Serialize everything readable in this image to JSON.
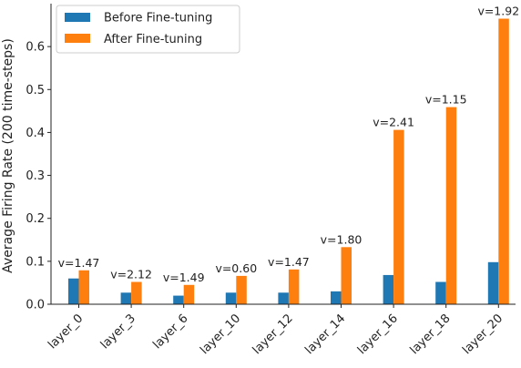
{
  "chart_data": {
    "type": "bar",
    "title": "",
    "xlabel": "",
    "ylabel": "Average Firing Rate (200 time-steps)",
    "ylim": [
      0,
      0.7
    ],
    "yticks": [
      0.0,
      0.1,
      0.2,
      0.3,
      0.4,
      0.5,
      0.6
    ],
    "ytick_labels": [
      "0.0",
      "0.1",
      "0.2",
      "0.3",
      "0.4",
      "0.5",
      "0.6"
    ],
    "grid": false,
    "legend_position": "top-left",
    "categories": [
      "layer_0",
      "layer_3",
      "layer_6",
      "layer_10",
      "layer_12",
      "layer_14",
      "layer_16",
      "layer_18",
      "layer_20"
    ],
    "series": [
      {
        "name": "Before Fine-tuning",
        "color": "#1f77b4",
        "values": [
          0.06,
          0.027,
          0.02,
          0.027,
          0.027,
          0.03,
          0.068,
          0.052,
          0.098
        ]
      },
      {
        "name": "After Fine-tuning",
        "color": "#ff7f0e",
        "values": [
          0.079,
          0.052,
          0.045,
          0.066,
          0.081,
          0.133,
          0.406,
          0.459,
          0.665
        ]
      }
    ],
    "annotations": [
      "v=1.47",
      "v=2.12",
      "v=1.49",
      "v=0.60",
      "v=1.47",
      "v=1.80",
      "v=2.41",
      "v=1.15",
      "v=1.92"
    ]
  }
}
